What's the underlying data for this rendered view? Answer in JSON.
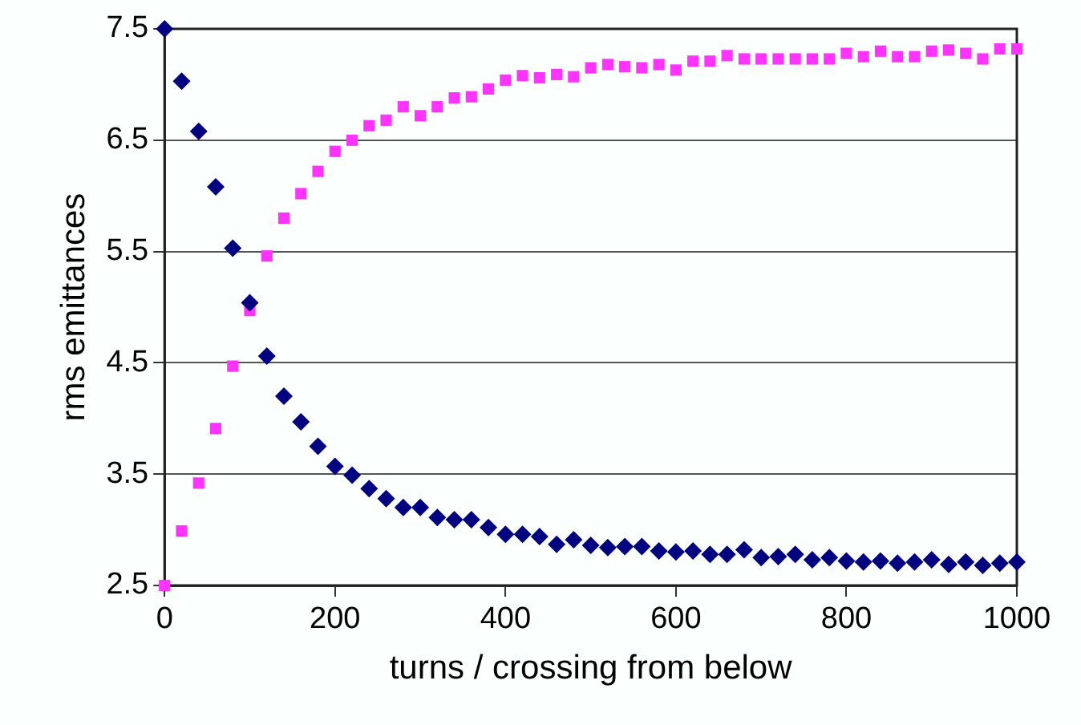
{
  "chart_data": {
    "type": "scatter",
    "xlabel": "turns / crossing from below",
    "ylabel": "rms emittances",
    "xlim": [
      0,
      1000
    ],
    "xticks": [
      0,
      200,
      400,
      600,
      800,
      1000
    ],
    "ylim": [
      2.5,
      7.5
    ],
    "yticks": [
      2.5,
      3.5,
      4.5,
      5.5,
      6.5,
      7.5
    ],
    "grid": "y",
    "legend": false,
    "x": [
      0,
      20,
      40,
      60,
      80,
      100,
      120,
      140,
      160,
      180,
      200,
      220,
      240,
      260,
      280,
      300,
      320,
      340,
      360,
      380,
      400,
      420,
      440,
      460,
      480,
      500,
      520,
      540,
      560,
      580,
      600,
      620,
      640,
      660,
      680,
      700,
      720,
      740,
      760,
      780,
      800,
      820,
      840,
      860,
      880,
      900,
      920,
      940,
      960,
      980,
      1000
    ],
    "series": [
      {
        "color": "#000080",
        "marker": "diamond",
        "values": [
          7.5,
          7.03,
          6.58,
          6.08,
          5.53,
          5.04,
          4.56,
          4.2,
          3.97,
          3.75,
          3.57,
          3.49,
          3.37,
          3.28,
          3.2,
          3.2,
          3.11,
          3.09,
          3.09,
          3.02,
          2.96,
          2.96,
          2.94,
          2.87,
          2.91,
          2.86,
          2.84,
          2.85,
          2.85,
          2.81,
          2.8,
          2.81,
          2.78,
          2.78,
          2.82,
          2.75,
          2.76,
          2.78,
          2.73,
          2.75,
          2.72,
          2.71,
          2.72,
          2.7,
          2.71,
          2.73,
          2.69,
          2.71,
          2.68,
          2.7,
          2.71
        ]
      },
      {
        "color": "#ff33ff",
        "marker": "square",
        "values": [
          2.5,
          2.99,
          3.42,
          3.91,
          4.47,
          4.97,
          5.46,
          5.8,
          6.02,
          6.22,
          6.4,
          6.5,
          6.63,
          6.68,
          6.8,
          6.72,
          6.8,
          6.88,
          6.89,
          6.96,
          7.04,
          7.08,
          7.06,
          7.09,
          7.07,
          7.15,
          7.18,
          7.16,
          7.15,
          7.18,
          7.13,
          7.21,
          7.21,
          7.26,
          7.23,
          7.23,
          7.23,
          7.23,
          7.23,
          7.23,
          7.28,
          7.25,
          7.3,
          7.25,
          7.25,
          7.3,
          7.31,
          7.28,
          7.23,
          7.32,
          7.32
        ]
      }
    ]
  }
}
